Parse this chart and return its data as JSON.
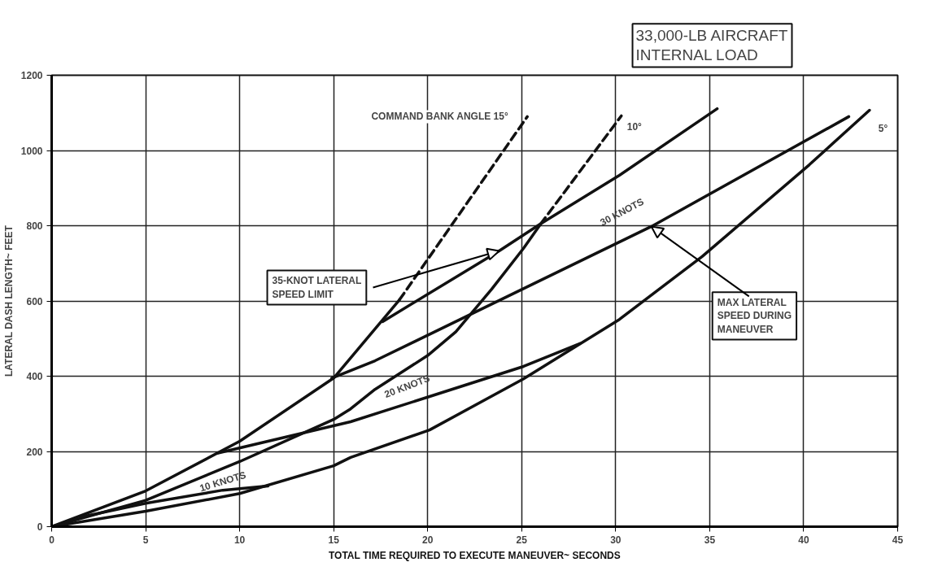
{
  "chart_data": {
    "type": "line",
    "title": "33,000-LB AIRCRAFT\nINTERNAL LOAD",
    "xlabel": "TOTAL TIME REQUIRED TO EXECUTE MANEUVER~ SECONDS",
    "ylabel": "LATERAL DASH LENGTH~ FEET",
    "xlim": [
      0,
      45
    ],
    "ylim": [
      0,
      1200
    ],
    "xticks": [
      0,
      5,
      10,
      15,
      20,
      25,
      30,
      35,
      40,
      45
    ],
    "yticks": [
      0,
      200,
      400,
      600,
      800,
      1000,
      1200
    ],
    "grid": true,
    "marker": "none",
    "line_style": "solid",
    "series": [
      {
        "color": "#111111",
        "x": [
          0,
          5,
          10,
          15,
          18.5
        ],
        "values": [
          0,
          95,
          227,
          395,
          603
        ]
      },
      {
        "color": "#111111",
        "line_style": "dashed",
        "x": [
          18.5,
          25.3
        ],
        "values": [
          603,
          1090
        ]
      },
      {
        "color": "#111111",
        "x": [
          0,
          5,
          10,
          15,
          15.9,
          17.2,
          20,
          21.5,
          23.4,
          25.1,
          26
        ],
        "values": [
          0,
          70,
          173,
          285,
          313,
          365,
          455,
          518,
          631,
          740,
          804
        ]
      },
      {
        "color": "#111111",
        "line_style": "dashed",
        "x": [
          26,
          30.3
        ],
        "values": [
          804,
          1092
        ]
      },
      {
        "color": "#111111",
        "x": [
          0,
          5,
          10,
          15,
          15.9,
          20.1,
          25.1,
          30.2,
          34.6,
          40.3,
          43.5
        ],
        "values": [
          0,
          41,
          88,
          162,
          184,
          257,
          393,
          551,
          718,
          962,
          1107
        ]
      },
      {
        "color": "#111111",
        "x": [
          17.6,
          23.8,
          26,
          30.2,
          35.4
        ],
        "values": [
          545,
          733,
          805,
          934,
          1111
        ]
      },
      {
        "color": "#111111",
        "x": [
          1.5,
          5,
          9.1,
          11.5
        ],
        "values": [
          25,
          62,
          97,
          108
        ]
      },
      {
        "color": "#111111",
        "x": [
          8.8,
          15.9,
          20.1,
          25.1,
          28.1
        ],
        "values": [
          195,
          279,
          346,
          426,
          487
        ]
      },
      {
        "color": "#111111",
        "x": [
          14.9,
          17.2,
          31.9,
          42.4
        ],
        "values": [
          395,
          441,
          798,
          1090
        ]
      }
    ],
    "annotations": [
      {
        "text": "COMMAND BANK ANGLE 15°",
        "x": 25.3,
        "y": 1090
      },
      {
        "text": "10°",
        "x": 30.3,
        "y": 1092
      },
      {
        "text": "5°",
        "x": 43.5,
        "y": 1107
      },
      {
        "text": "10 KNOTS",
        "x": 9.1,
        "y": 97
      },
      {
        "text": "20 KNOTS",
        "x": 20.1,
        "y": 346
      },
      {
        "text": "30 KNOTS",
        "x": 31.9,
        "y": 798
      },
      {
        "text": "35-KNOT LATERAL\nSPEED LIMIT",
        "x": 23.8,
        "y": 733
      },
      {
        "text": "MAX LATERAL\nSPEED DURING\nMANEUVER",
        "x": 31.9,
        "y": 798
      }
    ]
  }
}
